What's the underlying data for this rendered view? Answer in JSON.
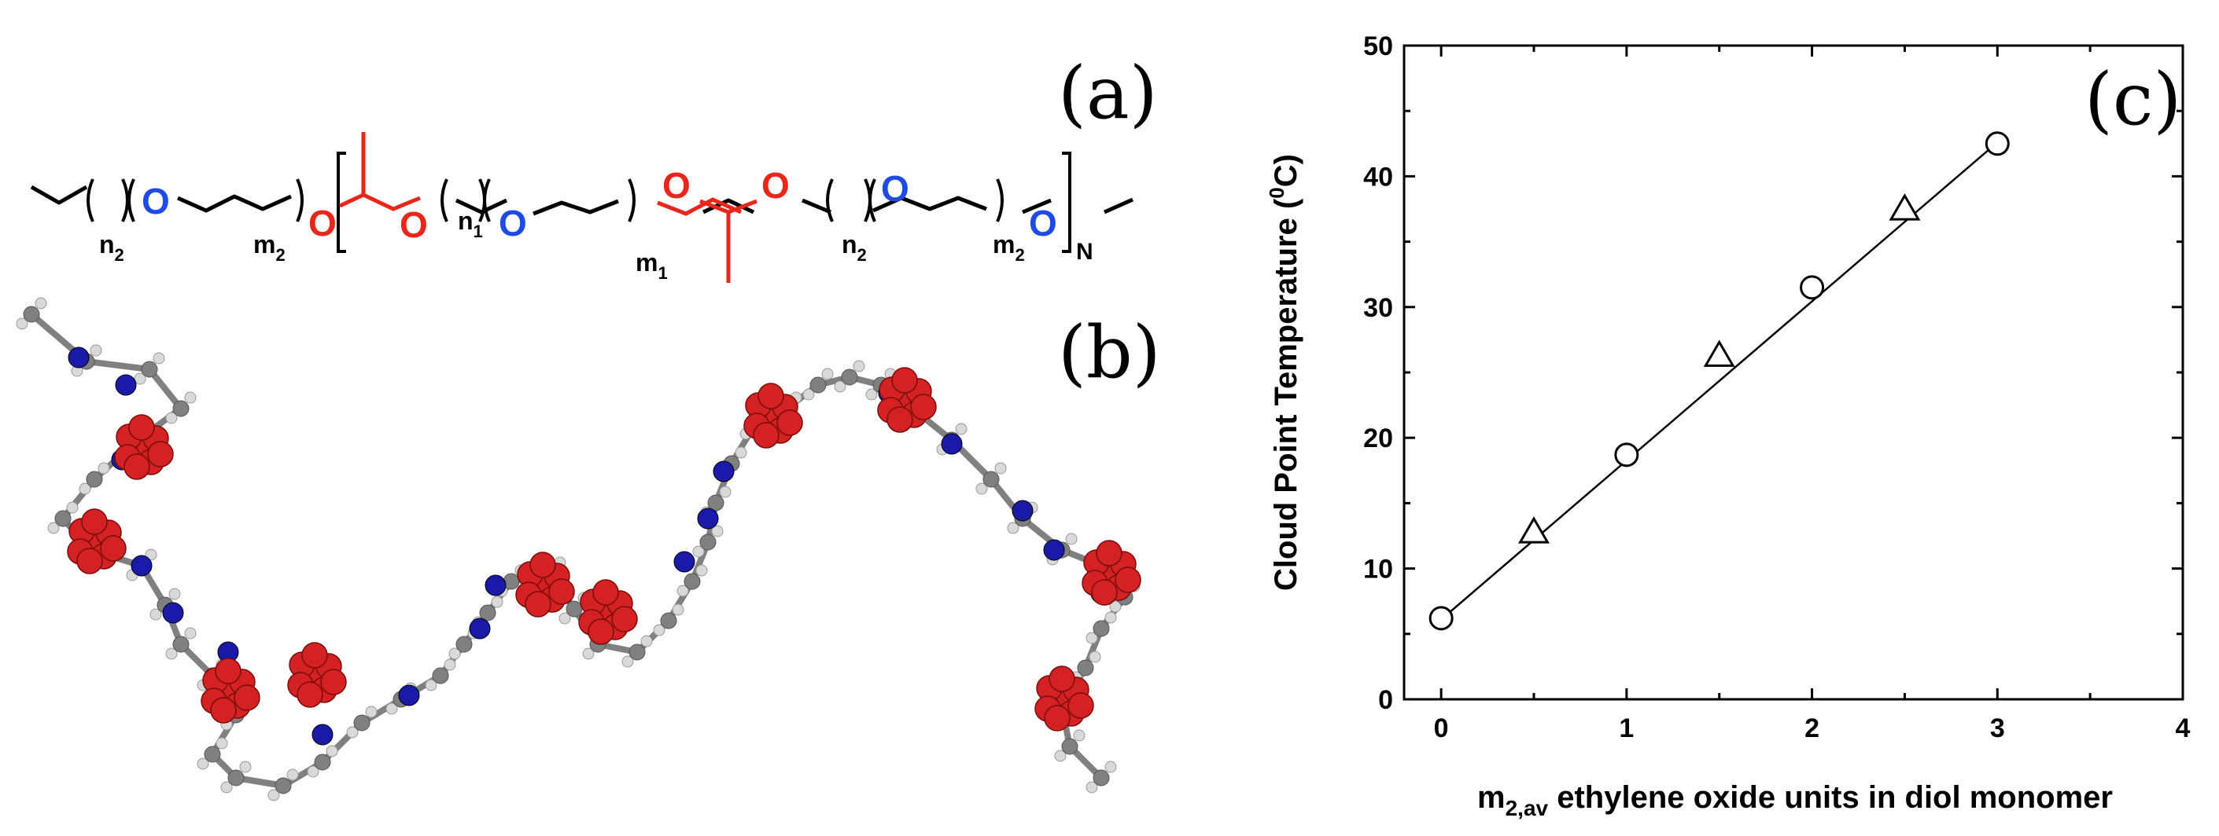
{
  "panels": {
    "a_label": "(a)",
    "b_label": "(b)",
    "c_label": "(c)"
  },
  "structure": {
    "atom_O": "O",
    "sub_n2": "n",
    "sub_n2_idx": "2",
    "sub_m2": "m",
    "sub_m2_idx": "2",
    "sub_n1": "n",
    "sub_n1_idx": "1",
    "sub_m1": "m",
    "sub_m1_idx": "1",
    "repeat_N": "N",
    "colors": {
      "ethylene_oxide": "#1e4be6",
      "acetal": "#e8261a",
      "carbon_bond": "#000000"
    }
  },
  "model": {
    "colors": {
      "acetal_atoms": "#d42121",
      "eo_oxygen": "#1a1aa8",
      "carbon": "#808080",
      "hydrogen": "#d9d9d9"
    }
  },
  "chart_data": {
    "type": "scatter",
    "title": "",
    "xlabel_main": "m",
    "xlabel_sub": "2,av",
    "xlabel_rest": " ethylene oxide units in diol monomer",
    "ylabel_main": "Cloud Point Temperature (",
    "ylabel_sup": "0",
    "ylabel_rest": "C)",
    "xlim": [
      -0.2,
      4
    ],
    "ylim": [
      0,
      50
    ],
    "xticks": [
      0,
      1,
      2,
      3,
      4
    ],
    "yticks": [
      0,
      10,
      20,
      30,
      40,
      50
    ],
    "grid": false,
    "series": [
      {
        "marker": "circle",
        "x": [
          0,
          1,
          2,
          3
        ],
        "y": [
          6.2,
          18.7,
          31.5,
          42.5
        ]
      },
      {
        "marker": "triangle",
        "x": [
          0.5,
          1.5,
          2.5
        ],
        "y": [
          12.7,
          26.2,
          37.4
        ]
      }
    ],
    "fit_line": {
      "x": [
        0,
        3
      ],
      "y": [
        6.1,
        42.6
      ]
    }
  }
}
